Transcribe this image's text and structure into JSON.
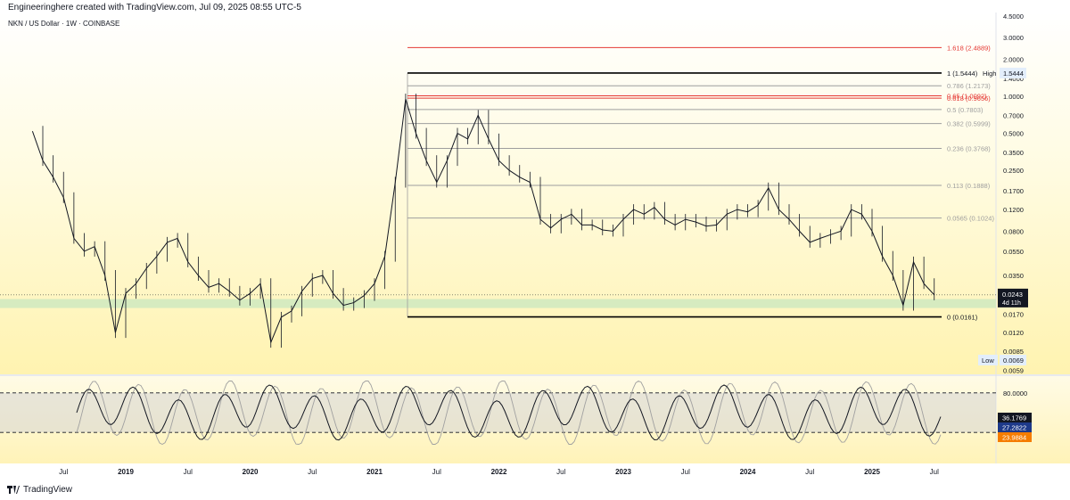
{
  "header": {
    "text": "Engineeringhere created with TradingView.com, Jul 09, 2025 08:55 UTC-5"
  },
  "footer": {
    "brand": "TradingView"
  },
  "colors": {
    "accent_red": "#e53935",
    "zone_green": "#c8e6c9",
    "last_price_bg": "#131722",
    "stoch_k": "#1e3a8a",
    "stoch_d": "#f57c00"
  },
  "chart_data": {
    "type": "candlestick",
    "title": "NKN / US Dollar · 1W · COINBASE",
    "x_ticks": [
      "Jul",
      "2019",
      "Jul",
      "2020",
      "Jul",
      "2021",
      "Jul",
      "2022",
      "Jul",
      "2023",
      "Jul",
      "2024",
      "Jul",
      "2025",
      "Jul"
    ],
    "y_scale": "log",
    "y_ticks": [
      "4.5000",
      "3.0000",
      "2.0000",
      "1.4000",
      "1.0000",
      "0.7000",
      "0.5000",
      "0.3500",
      "0.2500",
      "0.1700",
      "0.1200",
      "0.0800",
      "0.0550",
      "0.0350",
      "0.0170",
      "0.0120",
      "0.0085",
      "0.0059"
    ],
    "y_range": [
      0.0059,
      4.5
    ],
    "price_series": [
      [
        "2018-04",
        0.52
      ],
      [
        "2018-05",
        0.3
      ],
      [
        "2018-06",
        0.22
      ],
      [
        "2018-07",
        0.15
      ],
      [
        "2018-08",
        0.07
      ],
      [
        "2018-09",
        0.055
      ],
      [
        "2018-10",
        0.06
      ],
      [
        "2018-11",
        0.035
      ],
      [
        "2018-12",
        0.012
      ],
      [
        "2019-01",
        0.025
      ],
      [
        "2019-02",
        0.03
      ],
      [
        "2019-03",
        0.04
      ],
      [
        "2019-04",
        0.05
      ],
      [
        "2019-05",
        0.065
      ],
      [
        "2019-06",
        0.07
      ],
      [
        "2019-07",
        0.045
      ],
      [
        "2019-08",
        0.035
      ],
      [
        "2019-09",
        0.028
      ],
      [
        "2019-10",
        0.03
      ],
      [
        "2019-11",
        0.026
      ],
      [
        "2019-12",
        0.022
      ],
      [
        "2020-01",
        0.025
      ],
      [
        "2020-02",
        0.03
      ],
      [
        "2020-03",
        0.01
      ],
      [
        "2020-04",
        0.016
      ],
      [
        "2020-05",
        0.018
      ],
      [
        "2020-06",
        0.026
      ],
      [
        "2020-07",
        0.033
      ],
      [
        "2020-08",
        0.035
      ],
      [
        "2020-09",
        0.025
      ],
      [
        "2020-10",
        0.02
      ],
      [
        "2020-11",
        0.021
      ],
      [
        "2020-12",
        0.024
      ],
      [
        "2021-01",
        0.03
      ],
      [
        "2021-02",
        0.05
      ],
      [
        "2021-03",
        0.2
      ],
      [
        "2021-04",
        0.95
      ],
      [
        "2021-05",
        0.5
      ],
      [
        "2021-06",
        0.3
      ],
      [
        "2021-07",
        0.2
      ],
      [
        "2021-08",
        0.3
      ],
      [
        "2021-09",
        0.5
      ],
      [
        "2021-10",
        0.45
      ],
      [
        "2021-11",
        0.7
      ],
      [
        "2021-12",
        0.45
      ],
      [
        "2022-01",
        0.3
      ],
      [
        "2022-02",
        0.25
      ],
      [
        "2022-03",
        0.22
      ],
      [
        "2022-04",
        0.2
      ],
      [
        "2022-05",
        0.1
      ],
      [
        "2022-06",
        0.085
      ],
      [
        "2022-07",
        0.1
      ],
      [
        "2022-08",
        0.11
      ],
      [
        "2022-09",
        0.09
      ],
      [
        "2022-10",
        0.09
      ],
      [
        "2022-11",
        0.082
      ],
      [
        "2022-12",
        0.08
      ],
      [
        "2023-01",
        0.1
      ],
      [
        "2023-02",
        0.12
      ],
      [
        "2023-03",
        0.11
      ],
      [
        "2023-04",
        0.125
      ],
      [
        "2023-05",
        0.1
      ],
      [
        "2023-06",
        0.09
      ],
      [
        "2023-07",
        0.1
      ],
      [
        "2023-08",
        0.095
      ],
      [
        "2023-09",
        0.088
      ],
      [
        "2023-10",
        0.09
      ],
      [
        "2023-11",
        0.11
      ],
      [
        "2023-12",
        0.12
      ],
      [
        "2024-01",
        0.115
      ],
      [
        "2024-02",
        0.13
      ],
      [
        "2024-03",
        0.18
      ],
      [
        "2024-04",
        0.12
      ],
      [
        "2024-05",
        0.1
      ],
      [
        "2024-06",
        0.08
      ],
      [
        "2024-07",
        0.065
      ],
      [
        "2024-08",
        0.07
      ],
      [
        "2024-09",
        0.075
      ],
      [
        "2024-10",
        0.08
      ],
      [
        "2024-11",
        0.12
      ],
      [
        "2024-12",
        0.11
      ],
      [
        "2025-01",
        0.08
      ],
      [
        "2025-02",
        0.05
      ],
      [
        "2025-03",
        0.035
      ],
      [
        "2025-04",
        0.02
      ],
      [
        "2025-05",
        0.045
      ],
      [
        "2025-06",
        0.03
      ],
      [
        "2025-07",
        0.0243
      ]
    ],
    "fib_levels": [
      {
        "label": "1.618 (2.4889)",
        "value": 2.4889,
        "color": "#e53935"
      },
      {
        "label": "1 (1.5444)",
        "value": 1.5444,
        "color": "#000000"
      },
      {
        "label": "0.786 (1.2173)",
        "value": 1.2173,
        "color": "#9e9e9e"
      },
      {
        "label": "0.65 (1.0092)",
        "value": 1.0092,
        "color": "#e53935"
      },
      {
        "label": "0.618 (0.9656)",
        "value": 0.9656,
        "color": "#e53935"
      },
      {
        "label": "0.5 (0.7803)",
        "value": 0.7803,
        "color": "#9e9e9e"
      },
      {
        "label": "0.382 (0.5999)",
        "value": 0.5999,
        "color": "#9e9e9e"
      },
      {
        "label": "0.236 (0.3768)",
        "value": 0.3768,
        "color": "#9e9e9e"
      },
      {
        "label": "0.113 (0.1888)",
        "value": 0.1888,
        "color": "#9e9e9e"
      },
      {
        "label": "0.0565 (0.1024)",
        "value": 0.1024,
        "color": "#9e9e9e"
      },
      {
        "label": "0 (0.0161)",
        "value": 0.0161,
        "color": "#000000"
      }
    ],
    "high_label": "High",
    "high_value": "1.5444",
    "low_label": "Low",
    "low_value": "0.0069",
    "last_price": "0.0243",
    "countdown": "4d 11h",
    "support_zone": [
      0.019,
      0.0225
    ],
    "stoch_rsi": {
      "upper": 80,
      "lower": 20,
      "labels": {
        "upper": "80.0000",
        "k": "36.1769",
        "d1": "27.2822",
        "d2": "23.9884"
      }
    }
  }
}
